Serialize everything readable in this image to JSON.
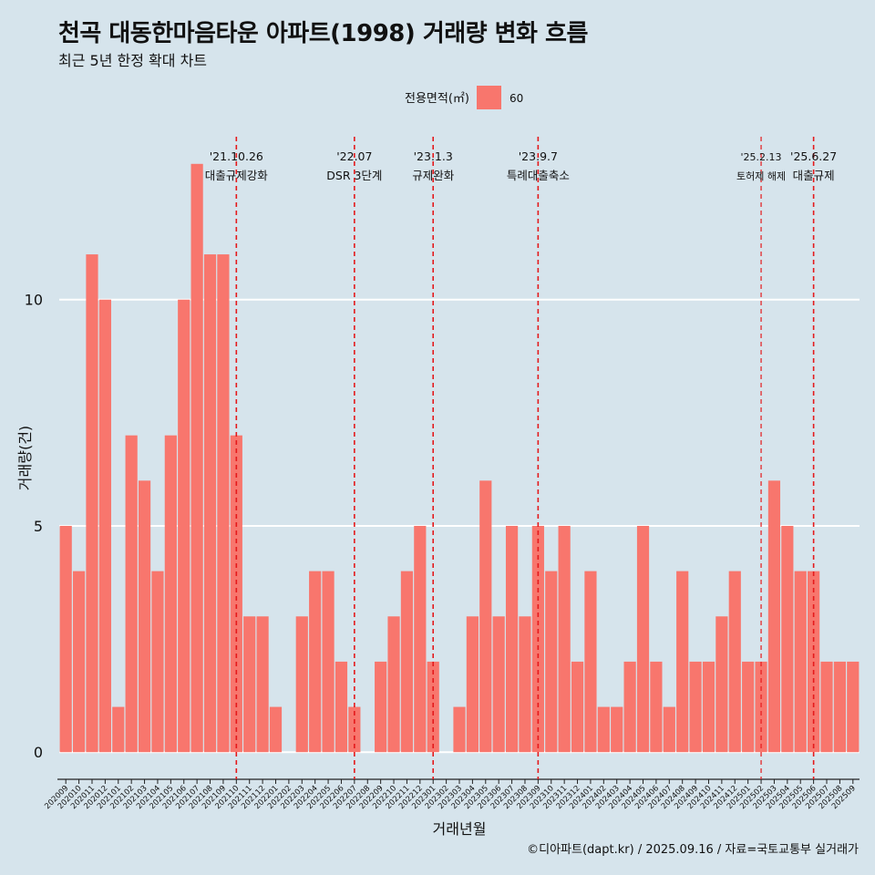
{
  "title": "천곡 대동한마음타운 아파트(1998) 거래량 변화 흐름",
  "subtitle": "최근 5년 한정 확대 차트",
  "caption": "©디아파트(dapt.kr) / 2025.09.16 / 자료=국토교통부 실거래가",
  "colors": {
    "background": "#d6e4ec",
    "bar": "#f8766d",
    "event_line": "#e41a1c",
    "grid": "#ffffff"
  },
  "chart_data": {
    "type": "bar",
    "xlabel": "거래년월",
    "ylabel": "거래량(건)",
    "ylim": [
      -0.6,
      13.6
    ],
    "yticks": [
      0,
      5,
      10
    ],
    "grid": true,
    "legend": {
      "title": "전용면적(㎡)",
      "placement": "top",
      "entries": [
        "60"
      ]
    },
    "categories": [
      "202009",
      "202010",
      "202011",
      "202012",
      "202101",
      "202102",
      "202103",
      "202104",
      "202105",
      "202106",
      "202107",
      "202108",
      "202109",
      "202110",
      "202111",
      "202112",
      "202201",
      "202202",
      "202203",
      "202204",
      "202205",
      "202206",
      "202207",
      "202208",
      "202209",
      "202210",
      "202211",
      "202212",
      "202301",
      "202302",
      "202303",
      "202304",
      "202305",
      "202306",
      "202307",
      "202308",
      "202309",
      "202310",
      "202311",
      "202312",
      "202401",
      "202402",
      "202403",
      "202404",
      "202405",
      "202406",
      "202407",
      "202408",
      "202409",
      "202410",
      "202411",
      "202412",
      "202501",
      "202502",
      "202503",
      "202504",
      "202505",
      "202506",
      "202507",
      "202508",
      "202509"
    ],
    "series": [
      {
        "name": "60",
        "values": [
          5,
          4,
          11,
          10,
          1,
          7,
          6,
          4,
          7,
          10,
          13,
          11,
          11,
          7,
          3,
          3,
          1,
          0,
          3,
          4,
          4,
          2,
          1,
          0,
          2,
          3,
          4,
          5,
          2,
          0,
          1,
          3,
          6,
          3,
          5,
          3,
          5,
          4,
          5,
          2,
          4,
          1,
          1,
          2,
          5,
          2,
          1,
          4,
          2,
          2,
          3,
          4,
          2,
          2,
          6,
          5,
          4,
          4,
          2,
          2,
          2
        ]
      }
    ],
    "events": [
      {
        "date": "'21.10.26",
        "label": "대출규제강화",
        "at": "202110"
      },
      {
        "date": "'22.07",
        "label": "DSR 3단계",
        "at": "202207"
      },
      {
        "date": "'23.1.3",
        "label": "규제완화",
        "at": "202301"
      },
      {
        "date": "'23.9.7",
        "label": "특례대출축소",
        "at": "202309"
      },
      {
        "date": "'25.2.13",
        "label": "토허제 해제",
        "at": "202502"
      },
      {
        "date": "'25.6.27",
        "label": "대출규제",
        "at": "202506"
      }
    ]
  }
}
